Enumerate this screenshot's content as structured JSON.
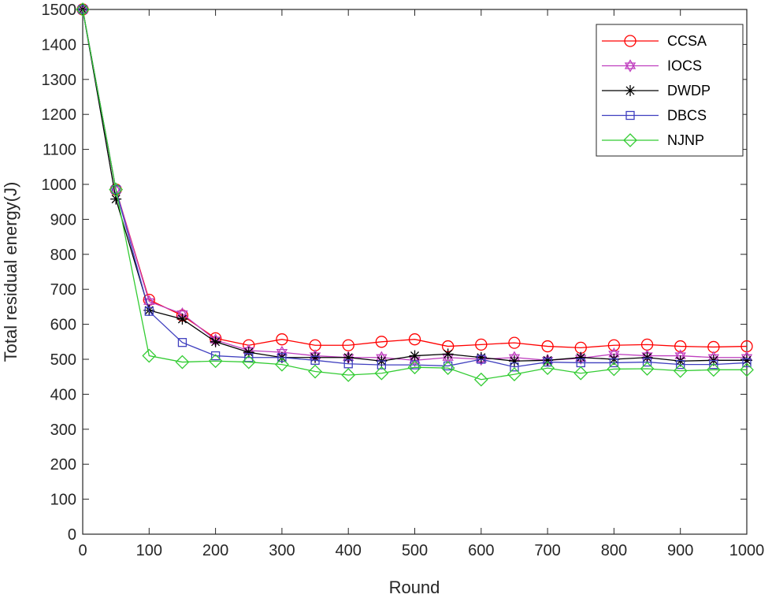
{
  "chart_data": {
    "type": "line",
    "xlabel": "Round",
    "ylabel": "Total residual energy(J)",
    "xlim": [
      0,
      1000
    ],
    "ylim": [
      0,
      1500
    ],
    "xticks": [
      0,
      100,
      200,
      300,
      400,
      500,
      600,
      700,
      800,
      900,
      1000
    ],
    "yticks": [
      0,
      100,
      200,
      300,
      400,
      500,
      600,
      700,
      800,
      900,
      1000,
      1100,
      1200,
      1300,
      1400,
      1500
    ],
    "grid": false,
    "legend_position": "top-right",
    "x": [
      0,
      50,
      100,
      150,
      200,
      250,
      300,
      350,
      400,
      450,
      500,
      550,
      600,
      650,
      700,
      750,
      800,
      850,
      900,
      950,
      1000
    ],
    "series": [
      {
        "name": "CCSA",
        "color": "#ff0000",
        "marker": "circle",
        "values": [
          1500,
          985,
          670,
          625,
          560,
          540,
          557,
          540,
          540,
          550,
          557,
          537,
          542,
          547,
          537,
          533,
          540,
          542,
          537,
          535,
          537
        ]
      },
      {
        "name": "IOCS",
        "color": "#bf3fbf",
        "marker": "hexagram",
        "values": [
          1500,
          985,
          665,
          630,
          555,
          525,
          520,
          510,
          505,
          505,
          497,
          505,
          500,
          505,
          497,
          503,
          515,
          510,
          510,
          505,
          505
        ]
      },
      {
        "name": "DWDP",
        "color": "#000000",
        "marker": "asterisk",
        "values": [
          1500,
          958,
          640,
          615,
          550,
          520,
          505,
          505,
          505,
          495,
          510,
          515,
          505,
          495,
          497,
          505,
          500,
          505,
          495,
          497,
          497
        ]
      },
      {
        "name": "DBCS",
        "color": "#3f3fbf",
        "marker": "square",
        "values": [
          1500,
          985,
          637,
          548,
          510,
          505,
          505,
          497,
          487,
          484,
          484,
          481,
          500,
          478,
          492,
          490,
          490,
          492,
          485,
          485,
          490
        ]
      },
      {
        "name": "NJNP",
        "color": "#33cc33",
        "marker": "diamond",
        "values": [
          1500,
          985,
          510,
          492,
          495,
          492,
          485,
          465,
          455,
          460,
          477,
          475,
          442,
          457,
          475,
          460,
          472,
          473,
          467,
          470,
          470
        ]
      }
    ]
  }
}
